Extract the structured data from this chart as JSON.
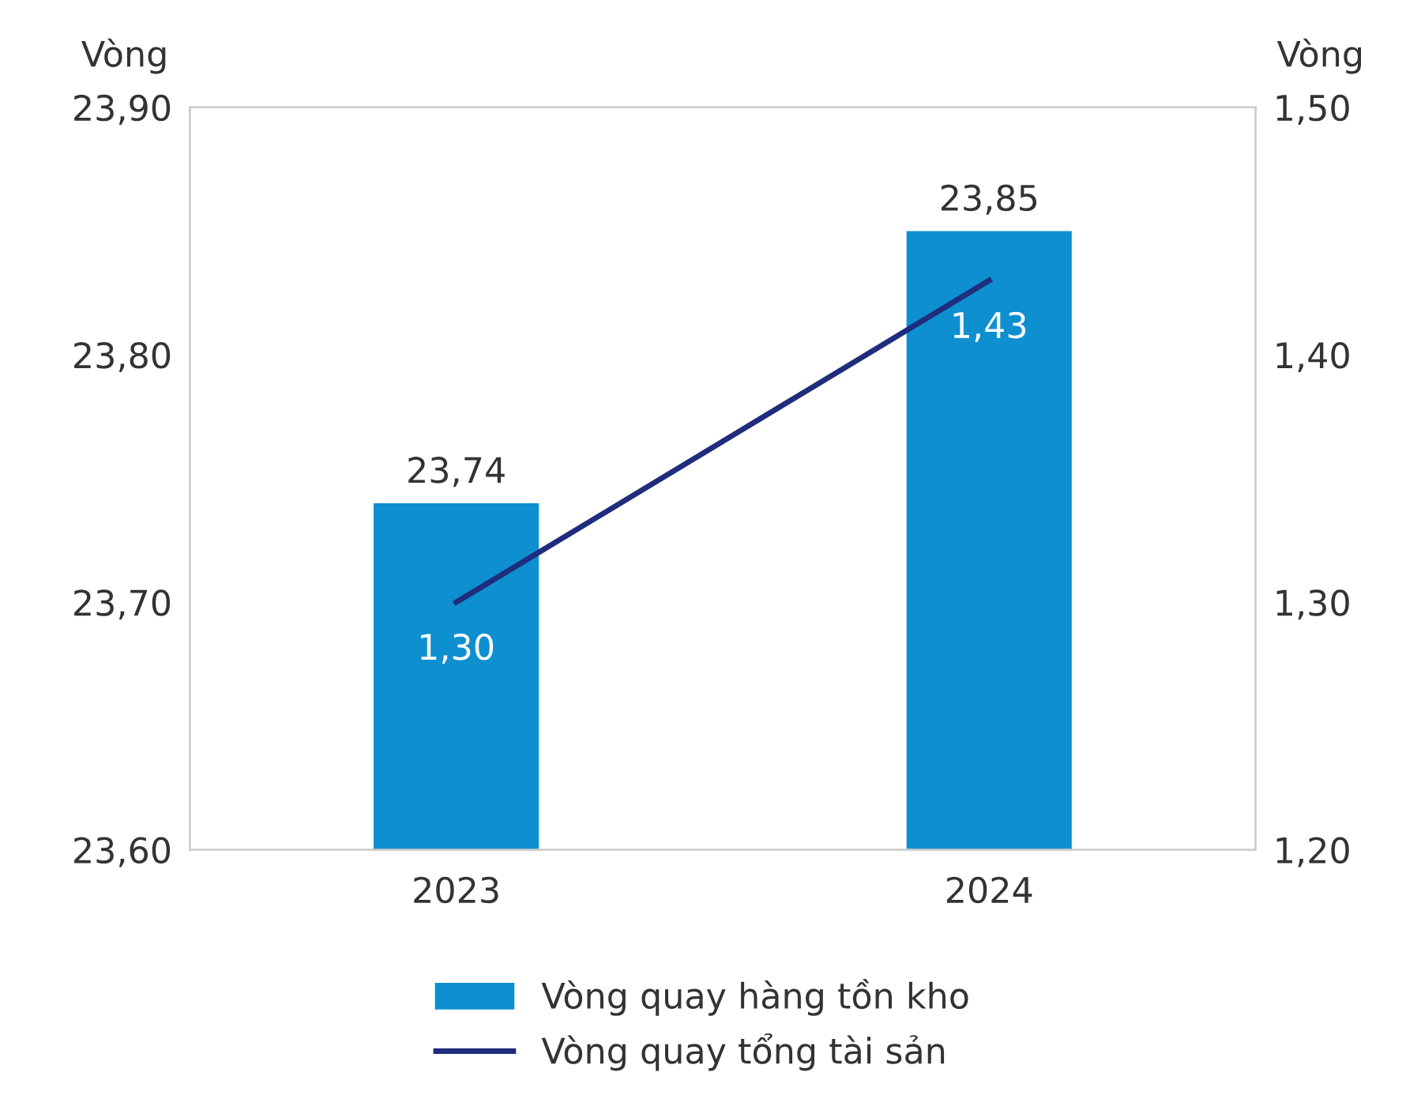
{
  "chart_data": {
    "type": "bar",
    "categories": [
      "2023",
      "2024"
    ],
    "ylabel": "Vòng",
    "y2label": "Vòng",
    "series": [
      {
        "name": "Vòng quay hàng tồn kho",
        "color": "#0e8fd0",
        "values": [
          23.74,
          23.85
        ],
        "value_labels": [
          "23,74",
          "23,85"
        ]
      },
      {
        "name": "Vòng quay tổng tài sản",
        "type": "line",
        "axis": "y2",
        "color": "#202c7c",
        "values": [
          1.3,
          1.43
        ],
        "value_labels": [
          "1,30",
          "1,43"
        ]
      }
    ],
    "ylim": [
      23.6,
      23.9
    ],
    "yticks": [
      {
        "value": 23.6,
        "label": "23,60"
      },
      {
        "value": 23.7,
        "label": "23,70"
      },
      {
        "value": 23.8,
        "label": "23,80"
      },
      {
        "value": 23.9,
        "label": "23,90"
      }
    ],
    "y2lim": [
      1.2,
      1.5
    ],
    "y2ticks": [
      {
        "value": 1.2,
        "label": "1,20"
      },
      {
        "value": 1.3,
        "label": "1,30"
      },
      {
        "value": 1.4,
        "label": "1,40"
      },
      {
        "value": 1.5,
        "label": "1,50"
      }
    ],
    "grid": false,
    "legend": "bottom",
    "marker": "none",
    "line_style": "solid"
  }
}
